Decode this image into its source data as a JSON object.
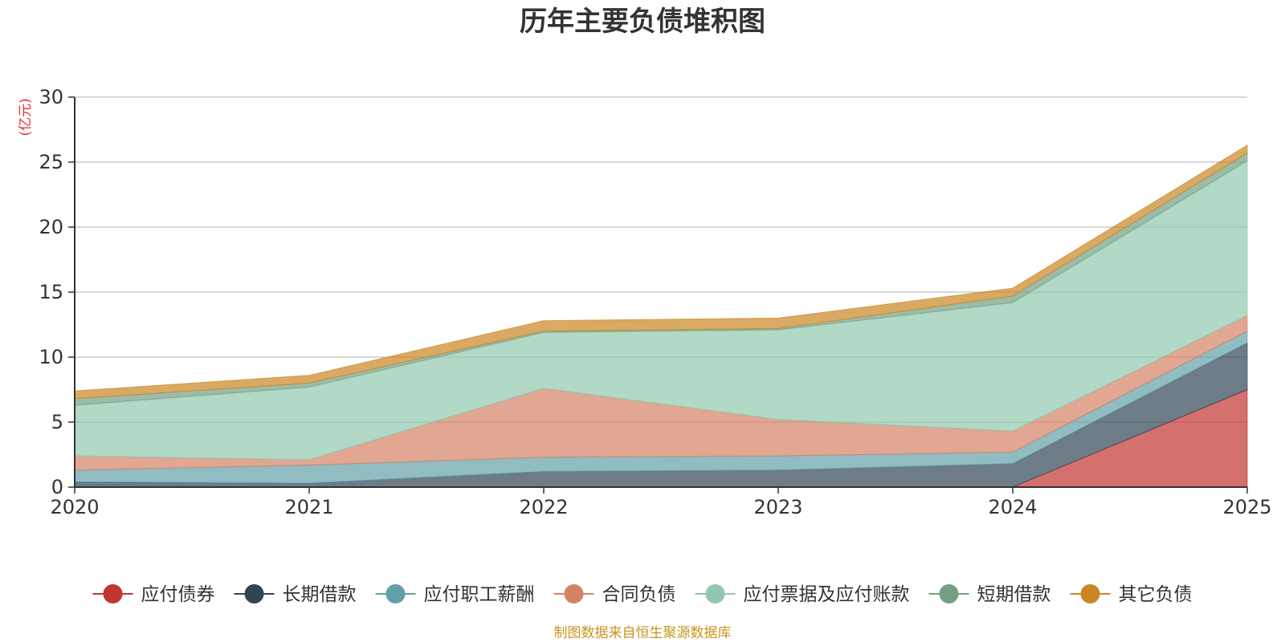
{
  "chart_data": {
    "type": "area",
    "stacked": true,
    "title": "历年主要负债堆积图",
    "ylabel": "(亿元)",
    "xlabel": "",
    "x": [
      "2020",
      "2021",
      "2022",
      "2023",
      "2024",
      "2025"
    ],
    "ylim": [
      0,
      30
    ],
    "yticks": [
      0,
      5,
      10,
      15,
      20,
      25,
      30
    ],
    "grid": true,
    "legend_position": "bottom",
    "series": [
      {
        "name": "应付债券",
        "color": "#c23531",
        "values": [
          0,
          0,
          0,
          0,
          0,
          7.5
        ]
      },
      {
        "name": "长期借款",
        "color": "#2f4554",
        "values": [
          0.4,
          0.3,
          1.2,
          1.3,
          1.8,
          3.6
        ]
      },
      {
        "name": "应付职工薪酬",
        "color": "#61a0a8",
        "values": [
          0.9,
          1.4,
          1.1,
          1.1,
          0.9,
          0.9
        ]
      },
      {
        "name": "合同负债",
        "color": "#d48265",
        "values": [
          1.1,
          0.4,
          5.3,
          2.8,
          1.6,
          1.2
        ]
      },
      {
        "name": "应付票据及应付账款",
        "color": "#91c7ae",
        "values": [
          3.9,
          5.6,
          4.3,
          6.9,
          9.9,
          11.9
        ]
      },
      {
        "name": "短期借款",
        "color": "#749f83",
        "values": [
          0.5,
          0.3,
          0.1,
          0.1,
          0.5,
          0.6
        ]
      },
      {
        "name": "其它负债",
        "color": "#ca8622",
        "values": [
          0.6,
          0.6,
          0.8,
          0.8,
          0.6,
          0.6
        ]
      }
    ],
    "source": "制图数据来自恒生聚源数据库"
  }
}
